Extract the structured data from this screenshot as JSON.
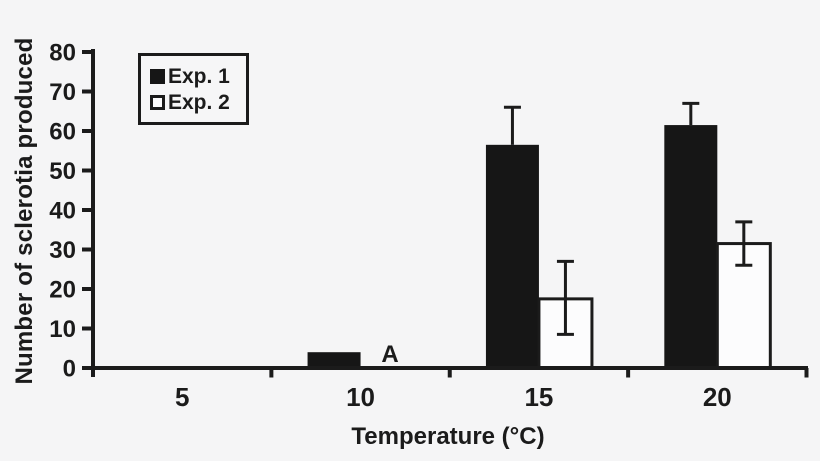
{
  "figure": {
    "background": "#f5f5f6",
    "ink_color": "#1b1b1b",
    "black_bar_fill": "#161616",
    "white_bar_fill": "#fcfcfd"
  },
  "chart_data": {
    "type": "bar",
    "title": "",
    "xlabel": "Temperature (°C)",
    "ylabel": "Number of sclerotia produced",
    "categories": [
      "5",
      "10",
      "15",
      "20"
    ],
    "series": [
      {
        "name": "Exp. 1",
        "swatch": "filled-black-square",
        "color": "#161616",
        "values": [
          0,
          4,
          56.5,
          61.5
        ],
        "errors_up": [
          0,
          0,
          9.5,
          5.5
        ],
        "errors_down": [
          0,
          0,
          0,
          0
        ]
      },
      {
        "name": "Exp. 2",
        "swatch": "open-white-square",
        "color": "#fcfcfd",
        "values": [
          0,
          0,
          17.5,
          31.5
        ],
        "errors_up": [
          0,
          0,
          9.5,
          5.5
        ],
        "errors_down": [
          0,
          0,
          9,
          5.5
        ]
      }
    ],
    "ylim": [
      0,
      80
    ],
    "yticks": [
      "0",
      "10",
      "20",
      "30",
      "40",
      "50",
      "60",
      "70",
      "80"
    ],
    "grid": false,
    "legend_position": "top-left",
    "annotations": [
      {
        "text": "A",
        "category": "10"
      }
    ]
  }
}
